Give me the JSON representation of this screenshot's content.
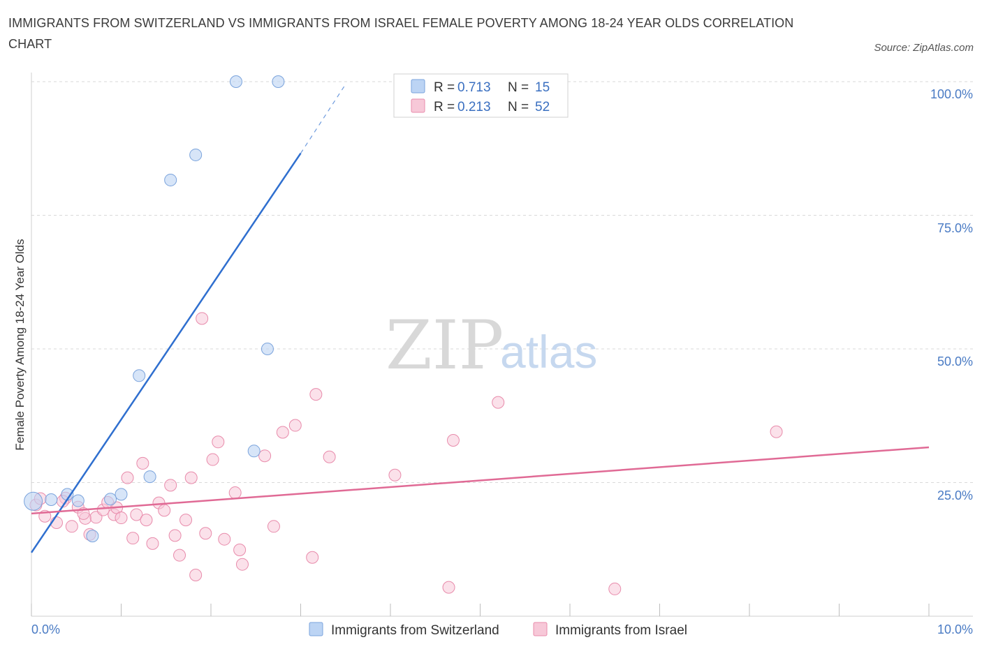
{
  "header": {
    "title": "IMMIGRANTS FROM SWITZERLAND VS IMMIGRANTS FROM ISRAEL FEMALE POVERTY AMONG 18-24 YEAR OLDS CORRELATION CHART",
    "source": "Source: ZipAtlas.com"
  },
  "watermark": {
    "zip": "ZIP",
    "atlas": "atlas"
  },
  "colors": {
    "switzerland_fill": "#bcd4f4",
    "switzerland_stroke": "#7aa3dc",
    "switzerland_line": "#2f6fcf",
    "israel_fill": "#f7c8d8",
    "israel_stroke": "#e88bab",
    "israel_line": "#e06a95",
    "tick_label": "#4a7bc4",
    "grid": "#d9d9d9"
  },
  "legend": {
    "rows": [
      {
        "r_label": "R = ",
        "r_value": "0.713",
        "n_label": "N = ",
        "n_value": "15"
      },
      {
        "r_label": "R = ",
        "r_value": "0.213",
        "n_label": "N = ",
        "n_value": "52"
      }
    ]
  },
  "chart_data": {
    "type": "scatter",
    "title": "IMMIGRANTS FROM SWITZERLAND VS IMMIGRANTS FROM ISRAEL FEMALE POVERTY AMONG 18-24 YEAR OLDS CORRELATION CHART",
    "xlabel": "",
    "ylabel": "Female Poverty Among 18-24 Year Olds",
    "xlim": [
      0,
      10
    ],
    "ylim": [
      0,
      100
    ],
    "x_tick_labels": [
      "0.0%",
      "10.0%"
    ],
    "y_tick_labels": [
      "25.0%",
      "50.0%",
      "75.0%",
      "100.0%"
    ],
    "grid": true,
    "legend_position": "top-center",
    "series": [
      {
        "name": "Immigrants from Switzerland",
        "r": 0.713,
        "n": 15,
        "trend": {
          "x": [
            0.0,
            3.0
          ],
          "y": [
            11.9,
            86.6
          ],
          "dashed_to": [
            3.5,
            99.5
          ]
        },
        "points": [
          [
            0.02,
            21.5
          ],
          [
            0.22,
            21.8
          ],
          [
            0.4,
            22.8
          ],
          [
            0.52,
            21.6
          ],
          [
            0.68,
            15.0
          ],
          [
            0.88,
            21.9
          ],
          [
            1.0,
            22.8
          ],
          [
            1.2,
            45.0
          ],
          [
            1.32,
            26.1
          ],
          [
            1.55,
            81.6
          ],
          [
            1.83,
            86.3
          ],
          [
            2.28,
            100.0
          ],
          [
            2.63,
            50.0
          ],
          [
            2.48,
            30.9
          ],
          [
            2.75,
            100.0
          ]
        ]
      },
      {
        "name": "Immigrants from Israel",
        "r": 0.213,
        "n": 52,
        "trend": {
          "x": [
            0.0,
            10.0
          ],
          "y": [
            19.2,
            31.6
          ]
        },
        "points": [
          [
            0.05,
            20.8
          ],
          [
            0.15,
            18.7
          ],
          [
            0.28,
            17.5
          ],
          [
            0.38,
            22.1
          ],
          [
            0.45,
            16.8
          ],
          [
            0.52,
            20.4
          ],
          [
            0.6,
            18.3
          ],
          [
            0.65,
            15.3
          ],
          [
            0.72,
            18.5
          ],
          [
            0.8,
            19.9
          ],
          [
            0.85,
            21.3
          ],
          [
            0.92,
            19.0
          ],
          [
            0.95,
            20.3
          ],
          [
            1.0,
            18.4
          ],
          [
            1.07,
            25.9
          ],
          [
            1.13,
            14.6
          ],
          [
            1.17,
            19.0
          ],
          [
            1.24,
            28.6
          ],
          [
            1.28,
            18.0
          ],
          [
            1.35,
            13.6
          ],
          [
            1.42,
            21.2
          ],
          [
            1.48,
            19.8
          ],
          [
            1.55,
            24.5
          ],
          [
            1.6,
            15.1
          ],
          [
            1.65,
            11.4
          ],
          [
            1.72,
            18.0
          ],
          [
            1.78,
            25.9
          ],
          [
            1.83,
            7.7
          ],
          [
            1.9,
            55.7
          ],
          [
            1.94,
            15.5
          ],
          [
            2.02,
            29.3
          ],
          [
            2.08,
            32.6
          ],
          [
            2.15,
            14.4
          ],
          [
            2.27,
            23.1
          ],
          [
            2.32,
            12.4
          ],
          [
            2.35,
            9.7
          ],
          [
            2.6,
            30.0
          ],
          [
            2.7,
            16.8
          ],
          [
            2.8,
            34.4
          ],
          [
            2.94,
            35.7
          ],
          [
            3.13,
            11.0
          ],
          [
            3.17,
            41.5
          ],
          [
            3.32,
            29.8
          ],
          [
            4.05,
            26.4
          ],
          [
            4.65,
            5.4
          ],
          [
            4.7,
            32.9
          ],
          [
            5.2,
            40.0
          ],
          [
            6.5,
            5.1
          ],
          [
            8.3,
            34.5
          ],
          [
            0.35,
            21.5
          ],
          [
            0.58,
            19.2
          ],
          [
            0.1,
            22.0
          ]
        ]
      }
    ]
  }
}
